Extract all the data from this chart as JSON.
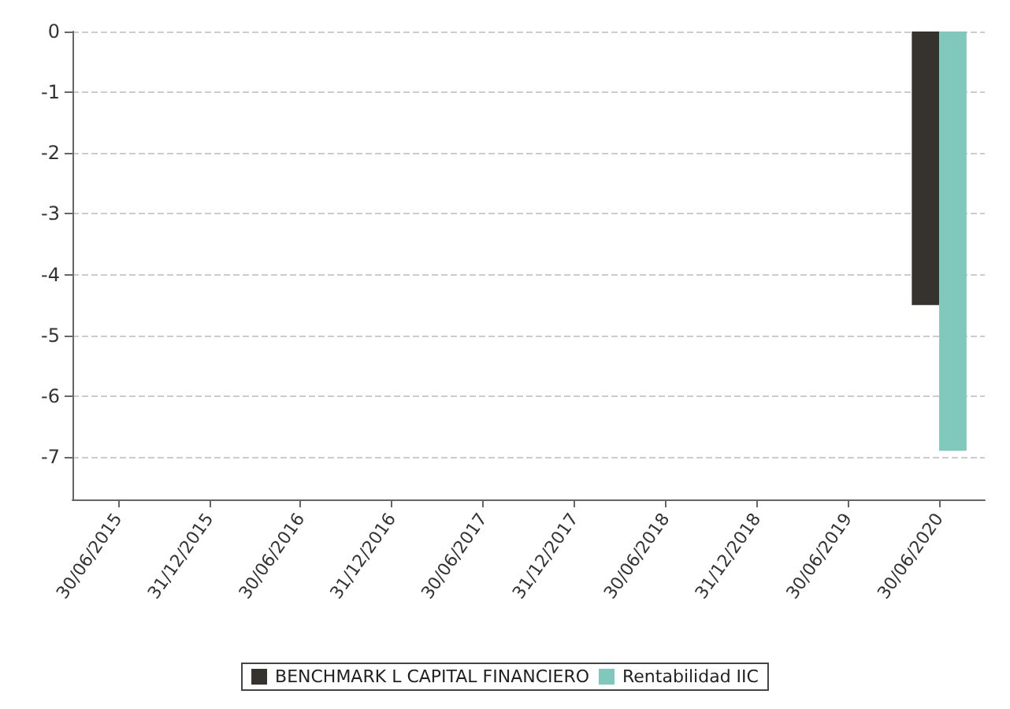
{
  "chart_data": {
    "type": "bar",
    "categories": [
      "30/06/2015",
      "31/12/2015",
      "30/06/2016",
      "31/12/2016",
      "30/06/2017",
      "31/12/2017",
      "30/06/2018",
      "31/12/2018",
      "30/06/2019",
      "30/06/2020"
    ],
    "series": [
      {
        "name": "BENCHMARK L CAPITAL FINANCIERO",
        "color": "#36322e",
        "values": [
          null,
          null,
          null,
          null,
          null,
          null,
          null,
          null,
          null,
          -4.5
        ]
      },
      {
        "name": "Rentabilidad IIC",
        "color": "#7fc8bb",
        "values": [
          null,
          null,
          null,
          null,
          null,
          null,
          null,
          null,
          null,
          -6.9
        ]
      }
    ],
    "ylim": [
      -7.7,
      0
    ],
    "yticks": [
      0,
      -1,
      -2,
      -3,
      -4,
      -5,
      -6,
      -7
    ],
    "grid": "y",
    "legend": "bottom"
  }
}
